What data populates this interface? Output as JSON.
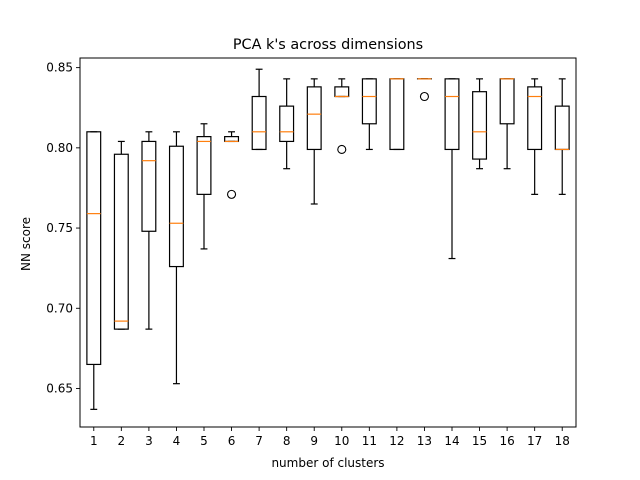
{
  "chart_data": {
    "type": "box",
    "title": "PCA k's across dimensions",
    "xlabel": "number of clusters",
    "ylabel": "NN score",
    "ylim": [
      0.626,
      0.856
    ],
    "yticks": [
      "0.65",
      "0.70",
      "0.75",
      "0.80",
      "0.85"
    ],
    "grid": false,
    "categories": [
      "1",
      "2",
      "3",
      "4",
      "5",
      "6",
      "7",
      "8",
      "9",
      "10",
      "11",
      "12",
      "13",
      "14",
      "15",
      "16",
      "17",
      "18"
    ],
    "boxes": [
      {
        "whislo": 0.637,
        "q1": 0.665,
        "med": 0.759,
        "q3": 0.81,
        "whishi": 0.81,
        "fliers": []
      },
      {
        "whislo": 0.687,
        "q1": 0.687,
        "med": 0.692,
        "q3": 0.796,
        "whishi": 0.804,
        "fliers": []
      },
      {
        "whislo": 0.687,
        "q1": 0.748,
        "med": 0.792,
        "q3": 0.804,
        "whishi": 0.81,
        "fliers": []
      },
      {
        "whislo": 0.653,
        "q1": 0.726,
        "med": 0.753,
        "q3": 0.801,
        "whishi": 0.81,
        "fliers": []
      },
      {
        "whislo": 0.737,
        "q1": 0.771,
        "med": 0.804,
        "q3": 0.807,
        "whishi": 0.815,
        "fliers": []
      },
      {
        "whislo": 0.804,
        "q1": 0.804,
        "med": 0.804,
        "q3": 0.807,
        "whishi": 0.81,
        "fliers": [
          0.771
        ]
      },
      {
        "whislo": 0.799,
        "q1": 0.799,
        "med": 0.81,
        "q3": 0.832,
        "whishi": 0.849,
        "fliers": []
      },
      {
        "whislo": 0.787,
        "q1": 0.804,
        "med": 0.81,
        "q3": 0.826,
        "whishi": 0.843,
        "fliers": []
      },
      {
        "whislo": 0.765,
        "q1": 0.799,
        "med": 0.821,
        "q3": 0.838,
        "whishi": 0.843,
        "fliers": []
      },
      {
        "whislo": 0.832,
        "q1": 0.832,
        "med": 0.832,
        "q3": 0.838,
        "whishi": 0.843,
        "fliers": [
          0.799
        ]
      },
      {
        "whislo": 0.799,
        "q1": 0.815,
        "med": 0.832,
        "q3": 0.843,
        "whishi": 0.843,
        "fliers": []
      },
      {
        "whislo": 0.799,
        "q1": 0.799,
        "med": 0.843,
        "q3": 0.843,
        "whishi": 0.843,
        "fliers": []
      },
      {
        "whislo": 0.843,
        "q1": 0.843,
        "med": 0.843,
        "q3": 0.843,
        "whishi": 0.843,
        "fliers": [
          0.832
        ]
      },
      {
        "whislo": 0.731,
        "q1": 0.799,
        "med": 0.832,
        "q3": 0.843,
        "whishi": 0.843,
        "fliers": []
      },
      {
        "whislo": 0.787,
        "q1": 0.793,
        "med": 0.81,
        "q3": 0.835,
        "whishi": 0.843,
        "fliers": []
      },
      {
        "whislo": 0.787,
        "q1": 0.815,
        "med": 0.843,
        "q3": 0.843,
        "whishi": 0.843,
        "fliers": []
      },
      {
        "whislo": 0.771,
        "q1": 0.799,
        "med": 0.832,
        "q3": 0.838,
        "whishi": 0.843,
        "fliers": []
      },
      {
        "whislo": 0.771,
        "q1": 0.799,
        "med": 0.799,
        "q3": 0.826,
        "whishi": 0.843,
        "fliers": []
      }
    ],
    "colors": {
      "box": "#000000",
      "median": "#ff7f0e"
    }
  }
}
